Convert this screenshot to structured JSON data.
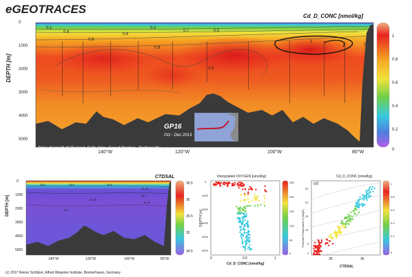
{
  "header": {
    "app_title": "eGEOTRACES"
  },
  "main_section": {
    "variable_label": "Cd_D_CONC [nmol/kg]",
    "ylabel": "DEPTH [m]",
    "y_ticks": [
      "0",
      "1000",
      "2000",
      "3000",
      "4000",
      "5000"
    ],
    "x_ticks": [
      "140°W",
      "120°W",
      "100°W",
      "80°W"
    ],
    "colorbar_ticks": [
      "1",
      "0.8",
      "0.6",
      "0.4",
      "0.2",
      "0"
    ],
    "contour_labels": [
      "0.1",
      "0.4",
      "0.2",
      "0.8",
      "0.6",
      "0.9",
      "0.7",
      "0.5",
      "0.9",
      "1",
      "1"
    ],
    "inset_title": "GP16",
    "inset_subtitle": "Oct - Dec 2013",
    "credits": "Data: Kenneth W Bruland, Seth John, Saeed Roshan, Jingfeng Wu",
    "software_label": "Ocean Data View / DIVA"
  },
  "small_section": {
    "variable_label": "CTDSAL",
    "y_ticks": [
      "0",
      "1000",
      "2000",
      "3000",
      "4000",
      "5000"
    ],
    "x_ticks": [
      "140°W",
      "120°W",
      "100°W",
      "80°W"
    ],
    "colorbar_ticks": [
      "36.5",
      "36",
      "35.5",
      "35",
      "34.5"
    ],
    "contour_labels": [
      "34.5",
      "34.8",
      "35.5",
      "34.55",
      "34.7",
      "34.65",
      "34.66",
      "34.6"
    ],
    "ylabel": "DEPTH [m]"
  },
  "scatter_left": {
    "title": "Interpolated OXYGEN [umol/kg]",
    "xlabel": "Cd_D_CONC [nmol/kg]",
    "ylabel": "DEPTH [m]",
    "x_ticks": [
      "0",
      "0.5",
      "1"
    ],
    "y_ticks": [
      "0",
      "1000",
      "2000",
      "3000",
      "4000",
      "5000"
    ],
    "colorbar_ticks": [
      "250",
      "200",
      "150",
      "100",
      "50",
      "0"
    ]
  },
  "scatter_right": {
    "title": "Cd_D_CONC [nmol/kg]",
    "xlabel": "CTDSAL",
    "ylabel": "Potential Temperature θ [degC]",
    "x_ticks": [
      "35",
      "36"
    ],
    "y_ticks": [
      "25",
      "20",
      "15",
      "10",
      "5",
      "0"
    ],
    "colorbar_ticks": [
      "1",
      "0.8",
      "0.6",
      "0.4",
      "0.2",
      "0"
    ],
    "sigma_label": "σ0"
  },
  "footer": {
    "copyright": "(c) 2017 Reiner Schlitzer, Alfred Wegener Institute, Bremerhaven, Germany"
  },
  "colors": {
    "bathymetry": "#3a3a3a",
    "high": "#e8231f",
    "mid": "#f5a623",
    "low": "#6fd04a",
    "deep_low": "#7b4fd6",
    "inset_track": "#c0162e"
  },
  "chart_data": [
    {
      "type": "heatmap",
      "title": "Cd_D_CONC [nmol/kg]",
      "xlabel": "",
      "ylabel": "DEPTH [m]",
      "x_ticks": [
        "140°W",
        "120°W",
        "100°W",
        "80°W"
      ],
      "y_range": [
        0,
        5500
      ],
      "colorbar_range": [
        0,
        1.1
      ],
      "contour_values": [
        0.1,
        0.2,
        0.4,
        0.5,
        0.6,
        0.7,
        0.8,
        0.9,
        1
      ]
    },
    {
      "type": "heatmap",
      "title": "CTDSAL",
      "y_range": [
        0,
        5500
      ],
      "colorbar_range": [
        34.5,
        36.5
      ]
    },
    {
      "type": "scatter",
      "title": "Interpolated OXYGEN [umol/kg]",
      "xlabel": "Cd_D_CONC [nmol/kg]",
      "ylabel": "DEPTH [m]",
      "xlim": [
        0,
        1.2
      ],
      "ylim": [
        0,
        5500
      ]
    },
    {
      "type": "scatter",
      "title": "Cd_D_CONC [nmol/kg]",
      "xlabel": "CTDSAL",
      "ylabel": "Potential Temperature θ [degC]",
      "ylim": [
        0,
        28
      ]
    }
  ]
}
